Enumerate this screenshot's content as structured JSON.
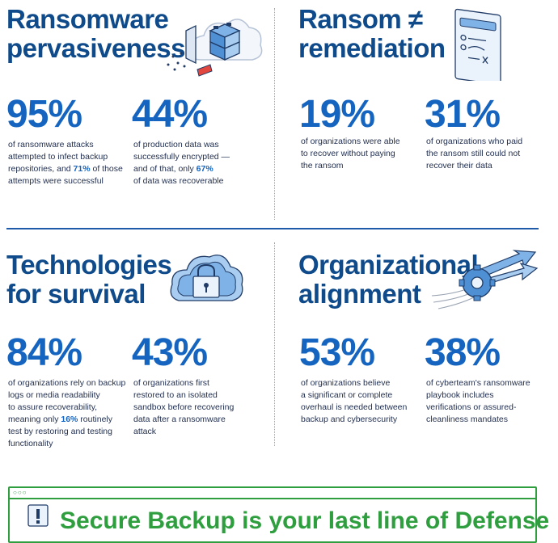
{
  "sections": {
    "pervasiveness": {
      "title_line1": "Ransomware",
      "title_line2": "pervasiveness",
      "stat1": {
        "value": "95%",
        "line1": "of ransomware attacks",
        "line2": "attempted to infect backup",
        "line3a": "repositories, and ",
        "line3b": "71%",
        "line3c": " of those",
        "line4": "attempts were successful"
      },
      "stat2": {
        "value": "44%",
        "line1": "of production data was",
        "line2": "successfully encrypted —",
        "line3a": "and of that, only ",
        "line3b": "67%",
        "line4": "of data was recoverable"
      }
    },
    "remediation": {
      "title_line1": "Ransom ≠",
      "title_line2": "remediation",
      "stat1": {
        "value": "19%",
        "line1": "of organizations were able",
        "line2": "to recover without paying",
        "line3": "the ransom"
      },
      "stat2": {
        "value": "31%",
        "line1": "of organizations who paid",
        "line2": "the ransom still could not",
        "line3": "recover their data"
      }
    },
    "technologies": {
      "title_line1": "Technologies",
      "title_line2": "for survival",
      "stat1": {
        "value": "84%",
        "line1": "of organizations rely on backup",
        "line2": "logs or media readability",
        "line3": "to assure recoverability,",
        "line4a": "meaning only ",
        "line4b": "16%",
        "line4c": " routinely",
        "line5": "test by restoring and testing",
        "line6": "functionality"
      },
      "stat2": {
        "value": "43%",
        "line1": "of organizations first",
        "line2": "restored to an isolated",
        "line3": "sandbox before recovering",
        "line4": "data after a ransomware",
        "line5": "attack"
      }
    },
    "alignment": {
      "title_line1": "Organizational",
      "title_line2": "alignment",
      "stat1": {
        "value": "53%",
        "line1": "of organizations believe",
        "line2": "a significant or complete",
        "line3": "overhaul is needed between",
        "line4": "backup and cybersecurity"
      },
      "stat2": {
        "value": "38%",
        "line1": "of cyberteam's ransomware",
        "line2": "playbook includes",
        "line3": "verifications or assured-",
        "line4": "cleanliness mandates"
      }
    }
  },
  "banner": {
    "text": "Secure Backup is your last line of Defense"
  },
  "icons": {
    "pervasiveness": "server-shield-icon",
    "remediation": "code-window-icon",
    "technologies": "cloud-lock-icon",
    "alignment": "gear-arrows-icon",
    "banner": "warning-icon"
  },
  "colors": {
    "title": "#0f4a8a",
    "stat": "#1565c0",
    "accent_green": "#2e9e3e",
    "divider": "#1e5aa8"
  }
}
